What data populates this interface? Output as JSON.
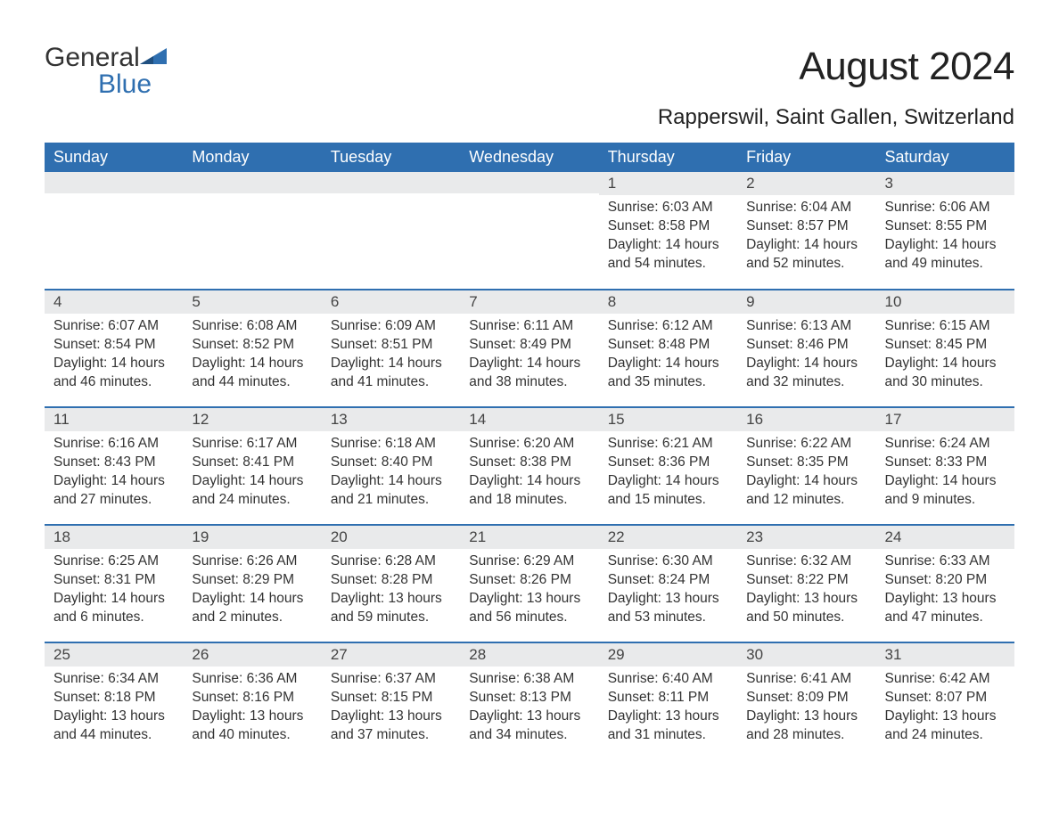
{
  "logo": {
    "word1": "General",
    "word2": "Blue"
  },
  "header": {
    "month_title": "August 2024",
    "location": "Rapperswil, Saint Gallen, Switzerland"
  },
  "colors": {
    "header_bg": "#2f6fb0",
    "header_text": "#ffffff",
    "daynum_bg": "#e9eaeb",
    "row_divider": "#2f6fb0",
    "body_text": "#333333",
    "page_bg": "#ffffff",
    "logo_accent": "#2f6fb0"
  },
  "day_headers": [
    "Sunday",
    "Monday",
    "Tuesday",
    "Wednesday",
    "Thursday",
    "Friday",
    "Saturday"
  ],
  "weeks": [
    [
      {
        "day": "",
        "sunrise": "",
        "sunset": "",
        "daylight": "",
        "empty": true
      },
      {
        "day": "",
        "sunrise": "",
        "sunset": "",
        "daylight": "",
        "empty": true
      },
      {
        "day": "",
        "sunrise": "",
        "sunset": "",
        "daylight": "",
        "empty": true
      },
      {
        "day": "",
        "sunrise": "",
        "sunset": "",
        "daylight": "",
        "empty": true
      },
      {
        "day": "1",
        "sunrise": "Sunrise: 6:03 AM",
        "sunset": "Sunset: 8:58 PM",
        "daylight": "Daylight: 14 hours and 54 minutes."
      },
      {
        "day": "2",
        "sunrise": "Sunrise: 6:04 AM",
        "sunset": "Sunset: 8:57 PM",
        "daylight": "Daylight: 14 hours and 52 minutes."
      },
      {
        "day": "3",
        "sunrise": "Sunrise: 6:06 AM",
        "sunset": "Sunset: 8:55 PM",
        "daylight": "Daylight: 14 hours and 49 minutes."
      }
    ],
    [
      {
        "day": "4",
        "sunrise": "Sunrise: 6:07 AM",
        "sunset": "Sunset: 8:54 PM",
        "daylight": "Daylight: 14 hours and 46 minutes."
      },
      {
        "day": "5",
        "sunrise": "Sunrise: 6:08 AM",
        "sunset": "Sunset: 8:52 PM",
        "daylight": "Daylight: 14 hours and 44 minutes."
      },
      {
        "day": "6",
        "sunrise": "Sunrise: 6:09 AM",
        "sunset": "Sunset: 8:51 PM",
        "daylight": "Daylight: 14 hours and 41 minutes."
      },
      {
        "day": "7",
        "sunrise": "Sunrise: 6:11 AM",
        "sunset": "Sunset: 8:49 PM",
        "daylight": "Daylight: 14 hours and 38 minutes."
      },
      {
        "day": "8",
        "sunrise": "Sunrise: 6:12 AM",
        "sunset": "Sunset: 8:48 PM",
        "daylight": "Daylight: 14 hours and 35 minutes."
      },
      {
        "day": "9",
        "sunrise": "Sunrise: 6:13 AM",
        "sunset": "Sunset: 8:46 PM",
        "daylight": "Daylight: 14 hours and 32 minutes."
      },
      {
        "day": "10",
        "sunrise": "Sunrise: 6:15 AM",
        "sunset": "Sunset: 8:45 PM",
        "daylight": "Daylight: 14 hours and 30 minutes."
      }
    ],
    [
      {
        "day": "11",
        "sunrise": "Sunrise: 6:16 AM",
        "sunset": "Sunset: 8:43 PM",
        "daylight": "Daylight: 14 hours and 27 minutes."
      },
      {
        "day": "12",
        "sunrise": "Sunrise: 6:17 AM",
        "sunset": "Sunset: 8:41 PM",
        "daylight": "Daylight: 14 hours and 24 minutes."
      },
      {
        "day": "13",
        "sunrise": "Sunrise: 6:18 AM",
        "sunset": "Sunset: 8:40 PM",
        "daylight": "Daylight: 14 hours and 21 minutes."
      },
      {
        "day": "14",
        "sunrise": "Sunrise: 6:20 AM",
        "sunset": "Sunset: 8:38 PM",
        "daylight": "Daylight: 14 hours and 18 minutes."
      },
      {
        "day": "15",
        "sunrise": "Sunrise: 6:21 AM",
        "sunset": "Sunset: 8:36 PM",
        "daylight": "Daylight: 14 hours and 15 minutes."
      },
      {
        "day": "16",
        "sunrise": "Sunrise: 6:22 AM",
        "sunset": "Sunset: 8:35 PM",
        "daylight": "Daylight: 14 hours and 12 minutes."
      },
      {
        "day": "17",
        "sunrise": "Sunrise: 6:24 AM",
        "sunset": "Sunset: 8:33 PM",
        "daylight": "Daylight: 14 hours and 9 minutes."
      }
    ],
    [
      {
        "day": "18",
        "sunrise": "Sunrise: 6:25 AM",
        "sunset": "Sunset: 8:31 PM",
        "daylight": "Daylight: 14 hours and 6 minutes."
      },
      {
        "day": "19",
        "sunrise": "Sunrise: 6:26 AM",
        "sunset": "Sunset: 8:29 PM",
        "daylight": "Daylight: 14 hours and 2 minutes."
      },
      {
        "day": "20",
        "sunrise": "Sunrise: 6:28 AM",
        "sunset": "Sunset: 8:28 PM",
        "daylight": "Daylight: 13 hours and 59 minutes."
      },
      {
        "day": "21",
        "sunrise": "Sunrise: 6:29 AM",
        "sunset": "Sunset: 8:26 PM",
        "daylight": "Daylight: 13 hours and 56 minutes."
      },
      {
        "day": "22",
        "sunrise": "Sunrise: 6:30 AM",
        "sunset": "Sunset: 8:24 PM",
        "daylight": "Daylight: 13 hours and 53 minutes."
      },
      {
        "day": "23",
        "sunrise": "Sunrise: 6:32 AM",
        "sunset": "Sunset: 8:22 PM",
        "daylight": "Daylight: 13 hours and 50 minutes."
      },
      {
        "day": "24",
        "sunrise": "Sunrise: 6:33 AM",
        "sunset": "Sunset: 8:20 PM",
        "daylight": "Daylight: 13 hours and 47 minutes."
      }
    ],
    [
      {
        "day": "25",
        "sunrise": "Sunrise: 6:34 AM",
        "sunset": "Sunset: 8:18 PM",
        "daylight": "Daylight: 13 hours and 44 minutes."
      },
      {
        "day": "26",
        "sunrise": "Sunrise: 6:36 AM",
        "sunset": "Sunset: 8:16 PM",
        "daylight": "Daylight: 13 hours and 40 minutes."
      },
      {
        "day": "27",
        "sunrise": "Sunrise: 6:37 AM",
        "sunset": "Sunset: 8:15 PM",
        "daylight": "Daylight: 13 hours and 37 minutes."
      },
      {
        "day": "28",
        "sunrise": "Sunrise: 6:38 AM",
        "sunset": "Sunset: 8:13 PM",
        "daylight": "Daylight: 13 hours and 34 minutes."
      },
      {
        "day": "29",
        "sunrise": "Sunrise: 6:40 AM",
        "sunset": "Sunset: 8:11 PM",
        "daylight": "Daylight: 13 hours and 31 minutes."
      },
      {
        "day": "30",
        "sunrise": "Sunrise: 6:41 AM",
        "sunset": "Sunset: 8:09 PM",
        "daylight": "Daylight: 13 hours and 28 minutes."
      },
      {
        "day": "31",
        "sunrise": "Sunrise: 6:42 AM",
        "sunset": "Sunset: 8:07 PM",
        "daylight": "Daylight: 13 hours and 24 minutes."
      }
    ]
  ]
}
